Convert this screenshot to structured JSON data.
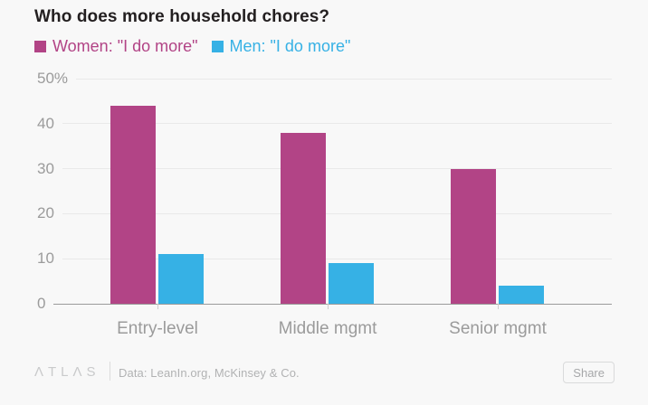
{
  "title": "Who does more household chores?",
  "chart_data": {
    "type": "bar",
    "title": "Who does more household chores?",
    "categories": [
      "Entry-level",
      "Middle mgmt",
      "Senior mgmt"
    ],
    "series": [
      {
        "name": "Women: \"I do more\"",
        "color": "#b24486",
        "values": [
          44,
          38,
          30
        ]
      },
      {
        "name": "Men: \"I do more\"",
        "color": "#36b1e5",
        "values": [
          11,
          9,
          4
        ]
      }
    ],
    "unit": "%",
    "xlabel": "",
    "ylabel": "",
    "ylim": [
      0,
      50
    ],
    "yticks": {
      "labels": [
        "50%",
        "40",
        "30",
        "20",
        "10",
        "0"
      ],
      "values": [
        50,
        40,
        30,
        20,
        10,
        0
      ]
    },
    "grid": true,
    "legend_position": "top-left"
  },
  "footer": {
    "logo": "ΛTLΛS",
    "source": "Data: LeanIn.org, McKinsey & Co.",
    "share_label": "Share"
  },
  "colors": {
    "background": "#f8f8f8",
    "title_text": "#231f20",
    "axis_labels": "#9b9b9b",
    "gridline": "#e9e9e9",
    "axis_line": "#9a9a9a",
    "tick": "#cfcfcf",
    "women_series": "#b24486",
    "men_series": "#36b1e5"
  }
}
